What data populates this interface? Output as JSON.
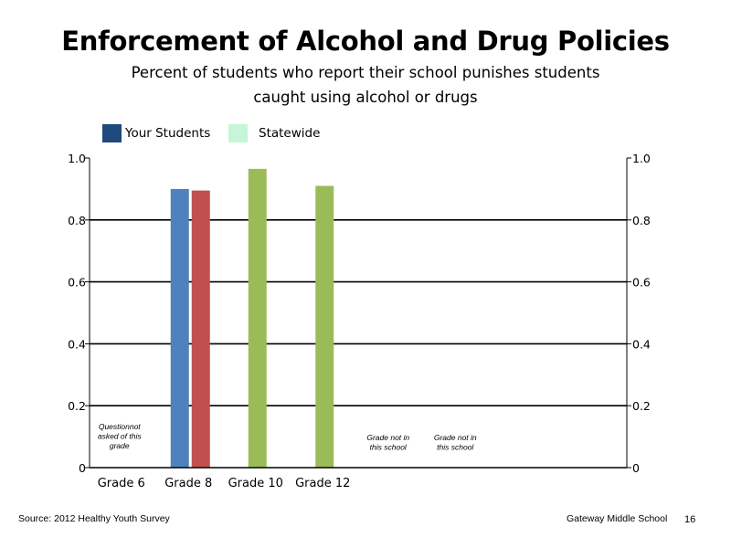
{
  "header": {
    "title": "Enforcement of Alcohol and Drug Policies",
    "subtitle_line1": "Percent of students who report their school punishes students",
    "subtitle_line2": "caught using alcohol or drugs"
  },
  "legend": [
    {
      "label": "Your Students",
      "color": "#1f497d"
    },
    {
      "label": "Statewide",
      "color": "#c6f5d8"
    }
  ],
  "chart_data": {
    "type": "bar",
    "categories": [
      "Grade 6",
      "Grade 8",
      "Grade 10",
      "Grade 12",
      "",
      ""
    ],
    "series": [
      {
        "name": "Your Students",
        "values": [
          null,
          0.9,
          null,
          null,
          null,
          null
        ]
      },
      {
        "name": "Statewide",
        "values": [
          null,
          0.895,
          0.965,
          0.91,
          null,
          null
        ]
      }
    ],
    "bar_colors": {
      "Grade 8": [
        "#4f81bd",
        "#c0504d"
      ],
      "Grade 10": [
        "#9bbb59"
      ],
      "Grade 12": [
        "#9bbb59"
      ]
    },
    "ylim": [
      0,
      1.0
    ],
    "y_ticks_left": [
      "0",
      "0.2",
      "0.4",
      "0.6",
      "0.8",
      "1.0"
    ],
    "y_ticks_right": [
      "0",
      "0.2",
      "0.4",
      "0.6",
      "0.8",
      "1.0"
    ],
    "y_tick_values": [
      0,
      0.2,
      0.4,
      0.6,
      0.8,
      1.0
    ],
    "grid": true,
    "annotations": [
      {
        "category_index": 0,
        "lines": [
          "Questionnot",
          "asked of this",
          "grade"
        ]
      },
      {
        "category_index": 4,
        "lines": [
          "Grade not in",
          "this school"
        ]
      },
      {
        "category_index": 5,
        "lines": [
          "Grade not in",
          "this school"
        ]
      }
    ]
  },
  "footer": {
    "source": "Source: 2012 Healthy Youth Survey",
    "school": "Gateway Middle  School",
    "page_number": "16"
  }
}
